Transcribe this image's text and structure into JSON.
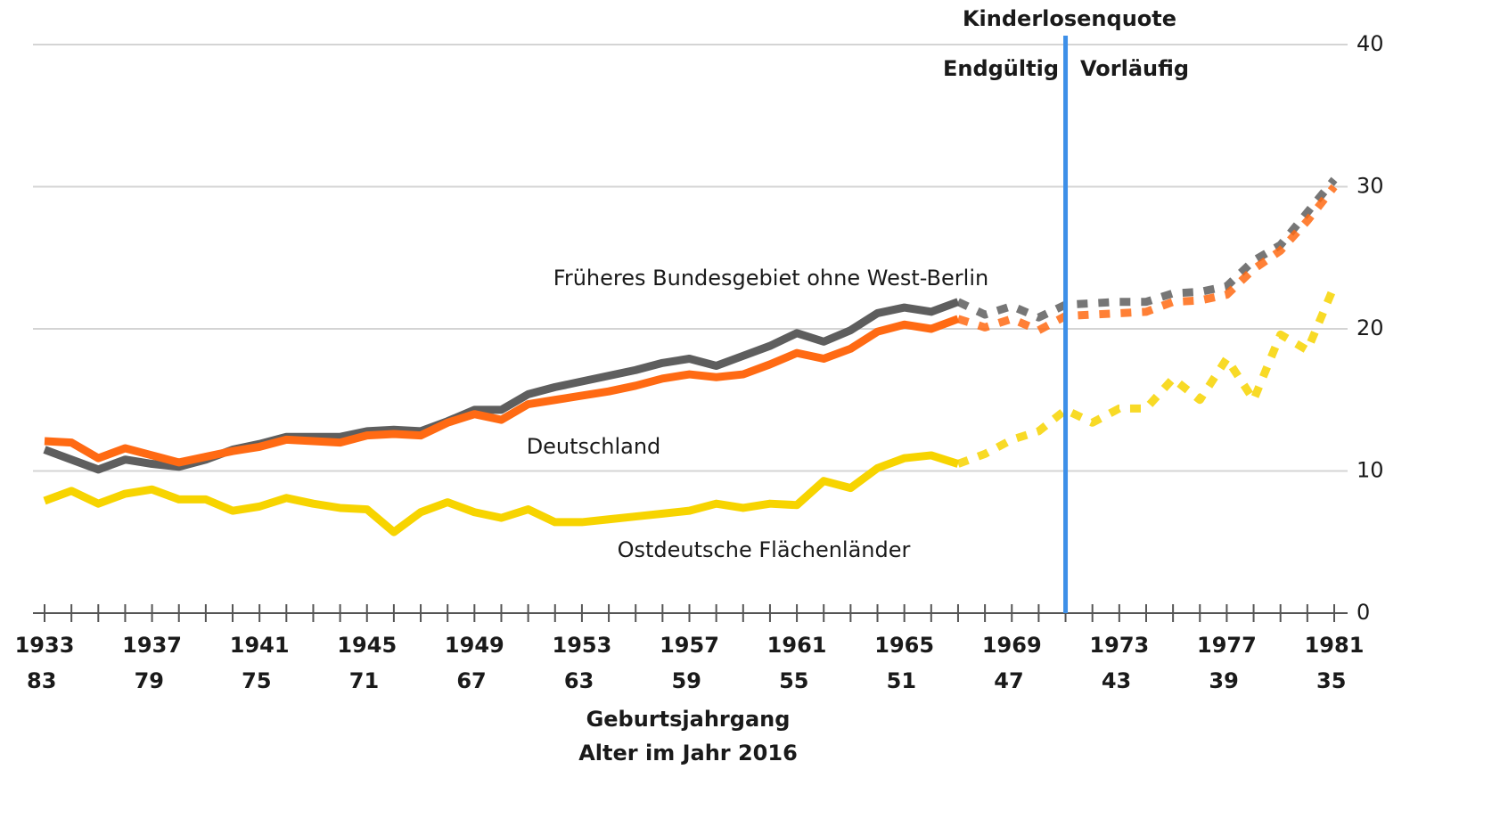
{
  "chart_data": {
    "type": "line",
    "title": "Kinderlosenquote",
    "divider_labels": [
      "Endgültig",
      "Vorläufig"
    ],
    "divider_x": 1971,
    "dashed_from": 1967,
    "divider_color": "#3d8fe8",
    "x_label": [
      "Geburtsjahrgang",
      "Alter im Jahr 2016"
    ],
    "x": [
      1933,
      1934,
      1935,
      1936,
      1937,
      1938,
      1939,
      1940,
      1941,
      1942,
      1943,
      1944,
      1945,
      1946,
      1947,
      1948,
      1949,
      1950,
      1951,
      1952,
      1953,
      1954,
      1955,
      1956,
      1957,
      1958,
      1959,
      1960,
      1961,
      1962,
      1963,
      1964,
      1965,
      1966,
      1967,
      1968,
      1969,
      1970,
      1971,
      1972,
      1973,
      1974,
      1975,
      1976,
      1977,
      1978,
      1979,
      1980,
      1981
    ],
    "xlim": [
      1933,
      1981
    ],
    "xticks": [
      1933,
      1937,
      1941,
      1945,
      1949,
      1953,
      1957,
      1961,
      1965,
      1969,
      1973,
      1977,
      1981
    ],
    "xtick_ages": [
      83,
      79,
      75,
      71,
      67,
      63,
      59,
      55,
      51,
      47,
      43,
      39,
      35
    ],
    "ylim": [
      0,
      40
    ],
    "yticks": [
      0,
      10,
      20,
      30,
      40
    ],
    "grid": true,
    "series": [
      {
        "name": "Früheres Bundesgebiet ohne West-Berlin",
        "color": "#5e5e5e",
        "values": [
          11.5,
          10.8,
          10.1,
          10.8,
          10.5,
          10.3,
          10.8,
          11.5,
          11.9,
          12.4,
          12.4,
          12.4,
          12.8,
          12.9,
          12.8,
          13.5,
          14.3,
          14.3,
          15.4,
          15.9,
          16.3,
          16.7,
          17.1,
          17.6,
          17.9,
          17.4,
          18.1,
          18.8,
          19.7,
          19.1,
          19.9,
          21.1,
          21.5,
          21.2,
          21.9,
          21.0,
          21.6,
          20.8,
          21.7,
          21.8,
          21.9,
          21.9,
          22.5,
          22.6,
          23.0,
          24.8,
          25.9,
          28.2,
          30.5
        ]
      },
      {
        "name": "Deutschland",
        "color": "#ff6a13",
        "values": [
          12.1,
          12.0,
          10.9,
          11.6,
          11.1,
          10.6,
          11.0,
          11.4,
          11.7,
          12.2,
          12.1,
          12.0,
          12.5,
          12.6,
          12.5,
          13.4,
          14.0,
          13.6,
          14.7,
          15.0,
          15.3,
          15.6,
          16.0,
          16.5,
          16.8,
          16.6,
          16.8,
          17.5,
          18.3,
          17.9,
          18.6,
          19.8,
          20.3,
          20.0,
          20.7,
          20.1,
          20.7,
          19.9,
          20.9,
          21.0,
          21.1,
          21.2,
          21.9,
          22.0,
          22.4,
          24.2,
          25.5,
          27.6,
          30.0
        ]
      },
      {
        "name": "Ostdeutsche Flächenländer",
        "color": "#f7d400",
        "values": [
          7.9,
          8.6,
          7.7,
          8.4,
          8.7,
          8.0,
          8.0,
          7.2,
          7.5,
          8.1,
          7.7,
          7.4,
          7.3,
          5.7,
          7.1,
          7.8,
          7.1,
          6.7,
          7.3,
          6.4,
          6.4,
          6.6,
          6.8,
          7.0,
          7.2,
          7.7,
          7.4,
          7.7,
          7.6,
          9.3,
          8.8,
          10.2,
          10.9,
          11.1,
          10.5,
          11.2,
          12.2,
          12.8,
          14.3,
          13.4,
          14.4,
          14.4,
          16.5,
          15.0,
          17.9,
          15.0,
          19.6,
          18.5,
          23.0
        ]
      }
    ]
  }
}
